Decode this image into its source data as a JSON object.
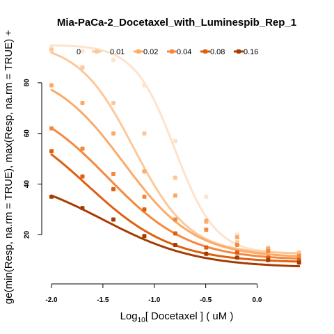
{
  "chart_data": {
    "type": "line",
    "title": "Mia-PaCa-2_Docetaxel_with_Luminespib_Rep_1",
    "xlabel_prefix": "Log",
    "xlabel_sub": "10",
    "xlabel_suffix": "[ Docetaxel ] ( uM )",
    "ylabel_left": "ge(min(Resp, na.rm = TRUE), max(Resp, na.rm = TRUE) +",
    "xlim": [
      -2.0,
      0.45
    ],
    "ylim": [
      5,
      97
    ],
    "x_ticks": [
      -2.0,
      -1.5,
      -1.0,
      -0.5,
      0.0
    ],
    "x_tick_labels": [
      "-2.0",
      "-1.5",
      "-1.0",
      "-0.5",
      "0.0"
    ],
    "y_ticks": [
      20,
      40,
      60,
      80
    ],
    "y_tick_labels": [
      "20",
      "40",
      "60",
      "80"
    ],
    "legend_position": "top",
    "x_points": [
      -2.0,
      -1.699,
      -1.398,
      -1.097,
      -0.796,
      -0.495,
      -0.194,
      0.107,
      0.408
    ],
    "series": [
      {
        "name": "0",
        "color": "#fde3cc",
        "values": [
          94.0,
          92.5,
          89.0,
          79.0,
          57.0,
          35.0,
          20.0,
          15.0,
          13.0
        ],
        "fit": {
          "bottom": 12.5,
          "top": 95,
          "ec50": -0.8,
          "hill": 2.2
        }
      },
      {
        "name": "0.01",
        "color": "#fdc899",
        "values": [
          93.0,
          86.0,
          72.0,
          60.0,
          42.5,
          25.0,
          17.0,
          14.0,
          13.0
        ],
        "fit": {
          "bottom": 12.5,
          "top": 96,
          "ec50": -1.2,
          "hill": 1.6
        }
      },
      {
        "name": "0.02",
        "color": "#fcaa67",
        "values": [
          79.0,
          72.0,
          60.0,
          45.0,
          35.5,
          25.5,
          19.0,
          14.5,
          12.0
        ],
        "fit": {
          "bottom": 11.0,
          "top": 86,
          "ec50": -1.3,
          "hill": 1.25
        }
      },
      {
        "name": "0.04",
        "color": "#f5883e",
        "values": [
          62.0,
          54.0,
          44.0,
          35.0,
          26.0,
          22.0,
          16.0,
          13.5,
          11.5
        ],
        "fit": {
          "bottom": 10.0,
          "top": 75,
          "ec50": -1.45,
          "hill": 1.1
        }
      },
      {
        "name": "0.08",
        "color": "#de5f10",
        "values": [
          53.0,
          43.0,
          38.0,
          30.0,
          20.5,
          15.0,
          13.0,
          11.0,
          10.0
        ],
        "fit": {
          "bottom": 9.0,
          "top": 70,
          "ec50": -1.65,
          "hill": 1.05
        }
      },
      {
        "name": "0.16",
        "color": "#a53c03",
        "values": [
          35.0,
          30.5,
          26.0,
          19.5,
          16.0,
          12.5,
          11.0,
          10.0,
          9.0
        ],
        "fit": {
          "bottom": 7.0,
          "top": 45,
          "ec50": -1.5,
          "hill": 0.95
        }
      }
    ]
  }
}
